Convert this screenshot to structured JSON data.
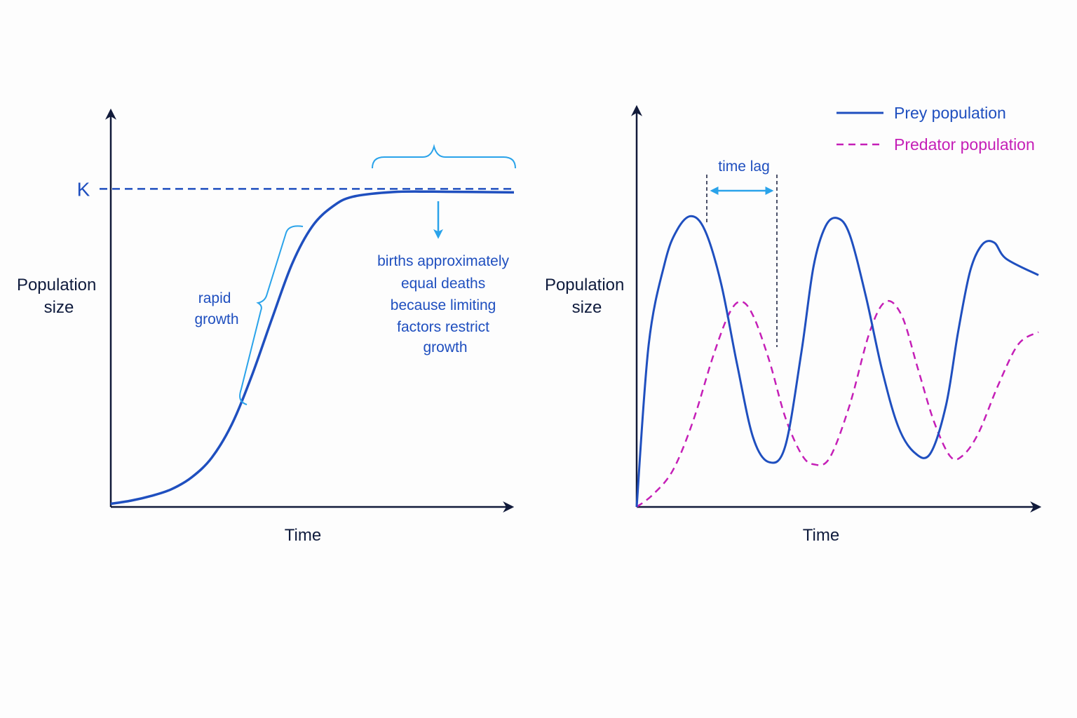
{
  "colors": {
    "axis": "#111a3a",
    "curve": "#1f4fbf",
    "accent": "#2aa3ea",
    "annotation_text": "#1f4fbf",
    "predator": "#c51fb7"
  },
  "chart_data": [
    {
      "type": "line",
      "title": "",
      "xlabel": "Time",
      "ylabel_lines": [
        "Population",
        "size"
      ],
      "xlim": [
        0,
        100
      ],
      "ylim": [
        0,
        100
      ],
      "grid": false,
      "carrying_capacity": {
        "label": "K",
        "value": 81
      },
      "series": [
        {
          "style": "solid",
          "points": [
            [
              0,
              0.8
            ],
            [
              5,
              1.6
            ],
            [
              10,
              2.8
            ],
            [
              15,
              4.5
            ],
            [
              20,
              7.5
            ],
            [
              25,
              12.5
            ],
            [
              30,
              21
            ],
            [
              35,
              33.5
            ],
            [
              40,
              48
            ],
            [
              45,
              62
            ],
            [
              50,
              71.5
            ],
            [
              55,
              76.5
            ],
            [
              60,
              79
            ],
            [
              70,
              80.2
            ],
            [
              80,
              80.3
            ],
            [
              100,
              80.1
            ]
          ]
        }
      ],
      "annotations": [
        {
          "id": "rapid-growth",
          "lines": [
            "rapid",
            "growth"
          ]
        },
        {
          "id": "plateau",
          "lines": [
            "births approximately",
            "equal deaths",
            "because limiting",
            "factors restrict",
            "growth"
          ]
        }
      ]
    },
    {
      "type": "line",
      "title": "",
      "xlabel": "Time",
      "ylabel_lines": [
        "Population",
        "size"
      ],
      "xlim": [
        0,
        100
      ],
      "ylim": [
        0,
        100
      ],
      "grid": false,
      "legend": {
        "placement": "top-right"
      },
      "series": [
        {
          "name": "Prey population",
          "style": "solid",
          "points": [
            [
              0,
              0
            ],
            [
              3,
              40
            ],
            [
              7,
              60
            ],
            [
              10,
              68
            ],
            [
              13.5,
              71.5
            ],
            [
              17,
              68
            ],
            [
              21,
              55
            ],
            [
              25,
              35
            ],
            [
              29,
              17
            ],
            [
              33,
              11
            ],
            [
              37,
              15
            ],
            [
              41,
              38
            ],
            [
              44,
              59
            ],
            [
              47,
              69
            ],
            [
              50,
              71
            ],
            [
              53,
              67
            ],
            [
              57,
              52
            ],
            [
              61,
              34
            ],
            [
              65,
              20
            ],
            [
              69,
              13.5
            ],
            [
              73,
              13
            ],
            [
              77,
              25
            ],
            [
              80,
              43
            ],
            [
              83,
              58
            ],
            [
              86,
              64.5
            ],
            [
              89,
              65
            ],
            [
              92,
              61
            ],
            [
              100,
              57
            ]
          ]
        },
        {
          "name": "Predator population",
          "style": "dashed",
          "points": [
            [
              0,
              0
            ],
            [
              4,
              3
            ],
            [
              9,
              9
            ],
            [
              14,
              21
            ],
            [
              19,
              37
            ],
            [
              23,
              47.5
            ],
            [
              26,
              50.5
            ],
            [
              29,
              47
            ],
            [
              33,
              36
            ],
            [
              37,
              22
            ],
            [
              41,
              13
            ],
            [
              44,
              10.5
            ],
            [
              48,
              12
            ],
            [
              53,
              25
            ],
            [
              58,
              43
            ],
            [
              62,
              50.5
            ],
            [
              66,
              47
            ],
            [
              70,
              34
            ],
            [
              74,
              21
            ],
            [
              78,
              12.5
            ],
            [
              81,
              12.5
            ],
            [
              85,
              18
            ],
            [
              90,
              30
            ],
            [
              95,
              40
            ],
            [
              100,
              43
            ]
          ]
        }
      ],
      "annotations": [
        {
          "id": "time-lag",
          "text": "time lag"
        }
      ]
    }
  ]
}
